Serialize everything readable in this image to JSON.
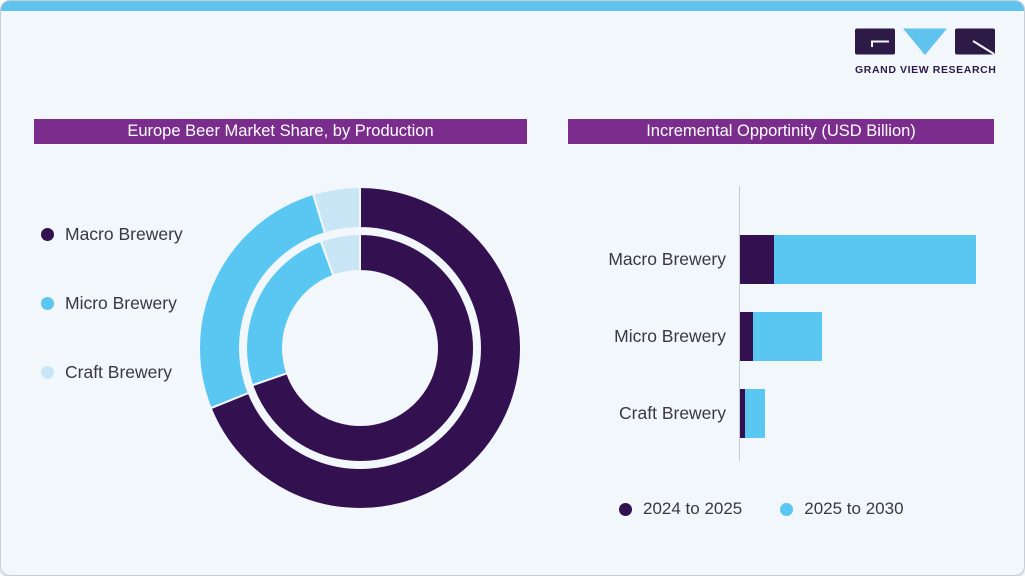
{
  "brand": {
    "name": "GRAND VIEW RESEARCH"
  },
  "theme": {
    "background": "#f1f7fb",
    "top_strip": "#5fc3ee",
    "title_bar_bg": "#7b2d8e",
    "title_text": "#ffffff",
    "text": "#3b3744",
    "axis_line": "#c7ccd1",
    "logo_purple": "#2e1a47"
  },
  "chart_data": [
    {
      "type": "pie",
      "subtype": "double-ring-donut",
      "title": "Europe Beer Market Share, by Production",
      "labels": [
        "Macro Brewery",
        "Micro Brewery",
        "Craft Brewery"
      ],
      "colors": [
        "#331150",
        "#5ac7f2",
        "#c9e6f7"
      ],
      "legend_position": "left",
      "rings": [
        {
          "name": "outer",
          "values_pct": [
            68.9,
            26.4,
            4.7
          ]
        },
        {
          "name": "inner",
          "values_pct": [
            69.7,
            24.7,
            5.6
          ]
        }
      ],
      "units": "percent estimated from arc angles; no data labels shown in image"
    },
    {
      "type": "bar",
      "orientation": "horizontal",
      "stacked": true,
      "title": "Incremental Opportinity (USD Billion)",
      "categories": [
        "Macro Brewery",
        "Micro Brewery",
        "Craft Brewery"
      ],
      "series": [
        {
          "name": "2024 to 2025",
          "color": "#331150",
          "values": [
            14.4,
            5.5,
            2.1
          ]
        },
        {
          "name": "2025 to 2030",
          "color": "#5ac7f2",
          "values": [
            85.6,
            29.2,
            8.5
          ]
        }
      ],
      "value_axis_max": 100,
      "units": "relative units estimated from bar lengths (longest stack = 100); axis unlabeled",
      "legend_position": "bottom",
      "grid": false
    }
  ]
}
